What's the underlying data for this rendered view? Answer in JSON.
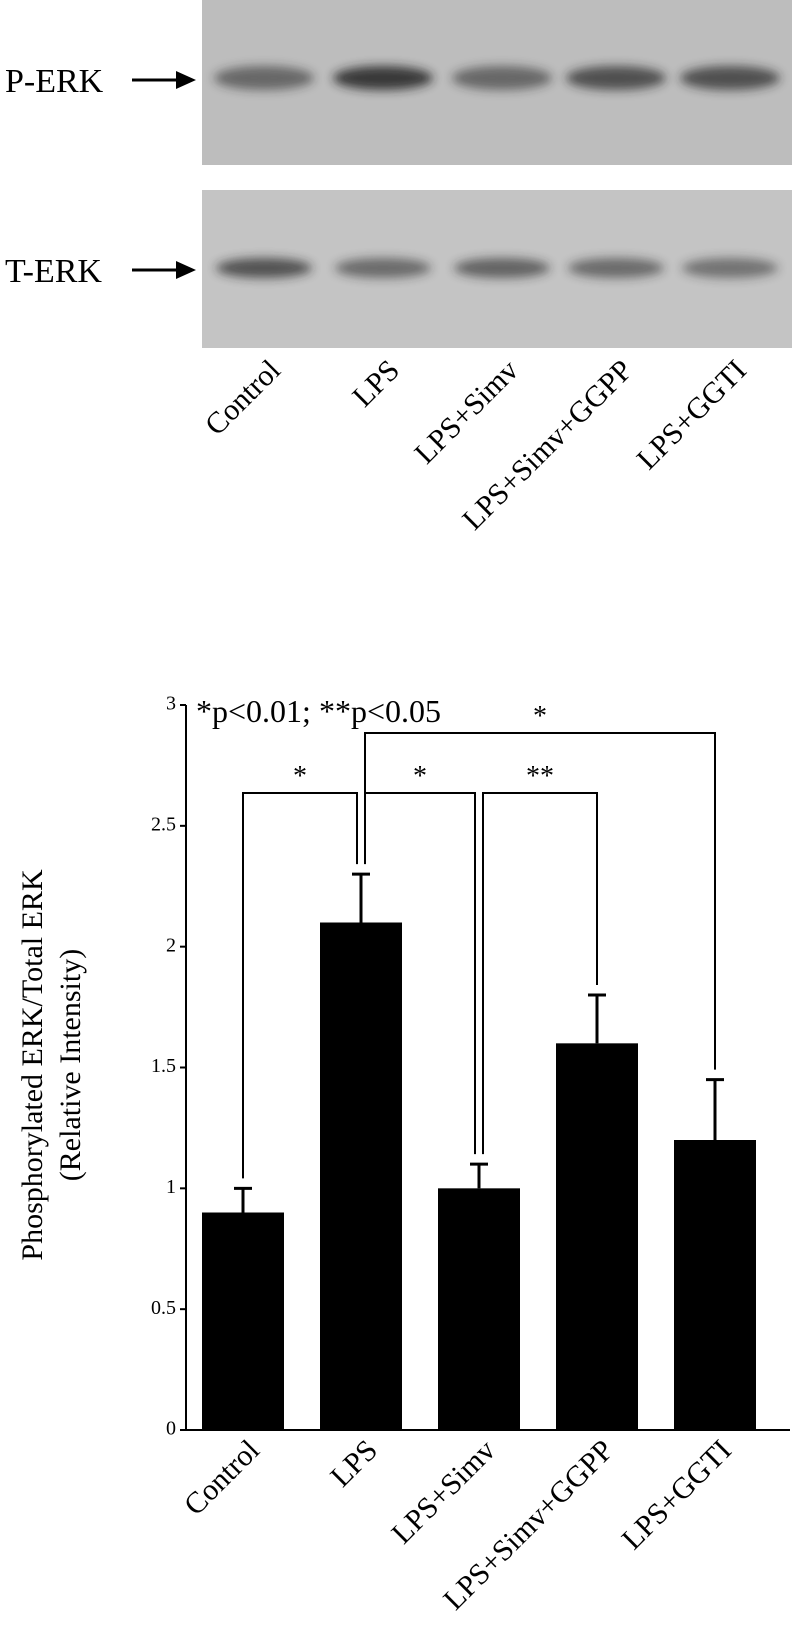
{
  "blot": {
    "rows": [
      "P-ERK",
      "T-ERK"
    ],
    "lanes": [
      "Control",
      "LPS",
      "LPS+Simv",
      "LPS+Simv+GGPP",
      "LPS+GGTI"
    ]
  },
  "chart_data": {
    "type": "bar",
    "annotation": "*p<0.01; **p<0.05",
    "y_label": [
      "Phosphorylated ERK/Total ERK",
      "(Relative Intensity)"
    ],
    "categories": [
      "Control",
      "LPS",
      "LPS+Simv",
      "LPS+Simv+GGPP",
      "LPS+GGTI"
    ],
    "values": [
      0.9,
      2.1,
      1.0,
      1.6,
      1.2
    ],
    "errors": [
      0.1,
      0.2,
      0.1,
      0.2,
      0.25
    ],
    "color": "#000000",
    "ylim": [
      0,
      3
    ],
    "yticks": [
      0,
      0.5,
      1,
      1.5,
      2,
      2.5,
      3
    ],
    "significance": [
      {
        "from": 0,
        "to": 1,
        "label": "*"
      },
      {
        "from": 1,
        "to": 2,
        "label": "*"
      },
      {
        "from": 2,
        "to": 3,
        "label": "**"
      },
      {
        "from": 1,
        "to": 4,
        "label": "*"
      }
    ]
  }
}
